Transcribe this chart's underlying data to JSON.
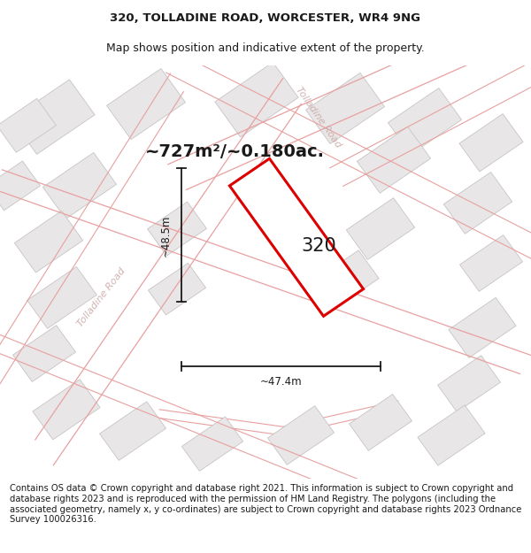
{
  "title_line1": "320, TOLLADINE ROAD, WORCESTER, WR4 9NG",
  "title_line2": "Map shows position and indicative extent of the property.",
  "area_text": "~727m²/~0.180ac.",
  "label_320": "320",
  "dim_width": "~47.4m",
  "dim_height": "~48.5m",
  "footer_text": "Contains OS data © Crown copyright and database right 2021. This information is subject to Crown copyright and database rights 2023 and is reproduced with the permission of HM Land Registry. The polygons (including the associated geometry, namely x, y co-ordinates) are subject to Crown copyright and database rights 2023 Ordnance Survey 100026316.",
  "map_bg": "#f7f5f5",
  "road_line_color": "#e8a0a0",
  "building_fill": "#e8e6e6",
  "building_edge": "#c8c4c4",
  "property_edge_color": "#dd0000",
  "property_fill_color": "#ffffff",
  "dim_line_color": "#1a1a1a",
  "text_dark": "#1a1a1a",
  "road_label_color": "#ccaaaa",
  "title_fontsize": 9.5,
  "subtitle_fontsize": 9.0,
  "footer_fontsize": 7.2,
  "area_fontsize": 14,
  "label_fontsize": 15,
  "dim_fontsize": 8.5
}
